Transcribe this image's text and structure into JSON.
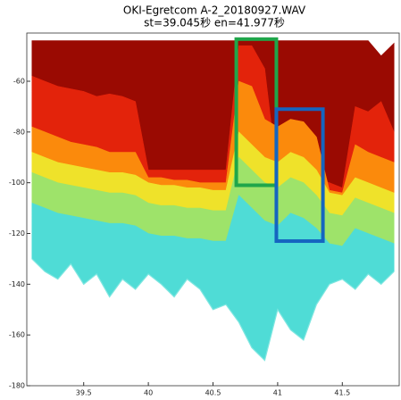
{
  "chart_data": {
    "type": "layered-area",
    "title": "OKI-Egretcom A-2_20180927.WAV",
    "subtitle": "st=39.045秒 en=41.977秒",
    "x": [
      39.1,
      39.2,
      39.3,
      39.4,
      39.5,
      39.6,
      39.7,
      39.8,
      39.9,
      40.0,
      40.1,
      40.2,
      40.3,
      40.4,
      40.5,
      40.6,
      40.7,
      40.8,
      40.9,
      41.0,
      41.1,
      41.2,
      41.3,
      41.4,
      41.5,
      41.6,
      41.7,
      41.8,
      41.9
    ],
    "series": [
      {
        "color": "#9a0a02",
        "values": [
          -44,
          -44,
          -44,
          -44,
          -44,
          -44,
          -44,
          -44,
          -44,
          -44,
          -44,
          -44,
          -44,
          -44,
          -44,
          -44,
          -44,
          -44,
          -44,
          -44,
          -44,
          -44,
          -44,
          -44,
          -44,
          -44,
          -44,
          -50,
          -45
        ]
      },
      {
        "color": "#e3230b",
        "values": [
          -58,
          -60,
          -62,
          -63,
          -64,
          -66,
          -65,
          -66,
          -68,
          -95,
          -95,
          -95,
          -95,
          -95,
          -95,
          -95,
          -46,
          -46,
          -55,
          -98,
          -97,
          -98,
          -98,
          -100,
          -102,
          -70,
          -72,
          -68,
          -80
        ]
      },
      {
        "color": "#fb8a0c",
        "values": [
          -78,
          -80,
          -82,
          -84,
          -85,
          -86,
          -88,
          -88,
          -88,
          -98,
          -98,
          -99,
          -99,
          -100,
          -100,
          -100,
          -60,
          -62,
          -75,
          -78,
          -75,
          -76,
          -82,
          -103,
          -104,
          -85,
          -88,
          -90,
          -92
        ]
      },
      {
        "color": "#efe22a",
        "values": [
          -88,
          -90,
          -92,
          -93,
          -94,
          -95,
          -96,
          -96,
          -97,
          -100,
          -101,
          -101,
          -102,
          -102,
          -103,
          -103,
          -80,
          -85,
          -90,
          -92,
          -88,
          -90,
          -95,
          -104,
          -105,
          -98,
          -100,
          -102,
          -104
        ]
      },
      {
        "color": "#9ee36a",
        "values": [
          -96,
          -98,
          -100,
          -101,
          -102,
          -103,
          -104,
          -104,
          -105,
          -108,
          -109,
          -109,
          -110,
          -110,
          -111,
          -111,
          -90,
          -95,
          -100,
          -102,
          -98,
          -100,
          -105,
          -112,
          -113,
          -106,
          -108,
          -110,
          -112
        ]
      },
      {
        "color": "#4fdcd6",
        "values": [
          -108,
          -110,
          -112,
          -113,
          -114,
          -115,
          -116,
          -116,
          -117,
          -120,
          -121,
          -121,
          -122,
          -122,
          -123,
          -123,
          -105,
          -110,
          -115,
          -117,
          -112,
          -114,
          -118,
          -124,
          -125,
          -118,
          -120,
          -122,
          -124
        ]
      },
      {
        "color": "#7fe6e0",
        "values": [
          -130,
          -135,
          -138,
          -132,
          -140,
          -136,
          -145,
          -138,
          -142,
          -136,
          -140,
          -145,
          -138,
          -142,
          -150,
          -148,
          -155,
          -165,
          -170,
          -150,
          -158,
          -162,
          -148,
          -140,
          -138,
          -142,
          -136,
          -140,
          -135
        ]
      }
    ],
    "highlights": [
      {
        "color": "#1fa64a",
        "xlim": [
          40.68,
          40.99
        ],
        "ylim": [
          -101,
          -43.4
        ]
      },
      {
        "color": "#1565c0",
        "xlim": [
          40.99,
          41.35
        ],
        "ylim": [
          -123,
          -71
        ]
      }
    ],
    "xlim": [
      39.06,
      41.94
    ],
    "ylim": [
      -180,
      -41
    ],
    "xticks": [
      39.5,
      40,
      40.5,
      41,
      41.5
    ],
    "yticks": [
      -180,
      -160,
      -140,
      -120,
      -100,
      -80,
      -60
    ]
  }
}
